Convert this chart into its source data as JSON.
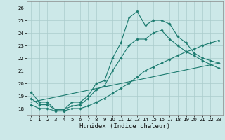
{
  "title": "",
  "xlabel": "Humidex (Indice chaleur)",
  "ylabel": "",
  "bg_color": "#cce8e8",
  "grid_color": "#aacccc",
  "line_color": "#1a7a6e",
  "xlim": [
    -0.5,
    23.5
  ],
  "ylim": [
    17.5,
    26.5
  ],
  "xticks": [
    0,
    1,
    2,
    3,
    4,
    5,
    6,
    7,
    8,
    9,
    10,
    11,
    12,
    13,
    14,
    15,
    16,
    17,
    18,
    19,
    20,
    21,
    22,
    23
  ],
  "yticks": [
    18,
    19,
    20,
    21,
    22,
    23,
    24,
    25,
    26
  ],
  "line1_x": [
    0,
    1,
    2,
    3,
    4,
    5,
    6,
    7,
    8,
    9,
    10,
    11,
    12,
    13,
    14,
    15,
    16,
    17,
    18,
    19,
    20,
    21,
    22,
    23
  ],
  "line1_y": [
    19.3,
    18.5,
    18.5,
    17.9,
    17.9,
    18.5,
    18.5,
    19.0,
    20.0,
    20.2,
    22.0,
    23.2,
    25.2,
    25.7,
    24.6,
    25.0,
    25.0,
    24.7,
    23.7,
    23.2,
    22.4,
    22.0,
    21.8,
    21.6
  ],
  "line2_x": [
    0,
    1,
    2,
    3,
    4,
    5,
    6,
    7,
    8,
    9,
    10,
    11,
    12,
    13,
    14,
    15,
    16,
    17,
    18,
    19,
    20,
    21,
    22,
    23
  ],
  "line2_y": [
    18.8,
    18.3,
    18.3,
    17.9,
    17.9,
    18.2,
    18.3,
    18.8,
    19.5,
    19.8,
    21.0,
    22.0,
    23.0,
    23.5,
    23.5,
    24.0,
    24.2,
    23.5,
    23.0,
    22.5,
    22.2,
    21.8,
    21.5,
    21.2
  ],
  "line3_x": [
    0,
    1,
    2,
    3,
    4,
    5,
    6,
    7,
    8,
    9,
    10,
    11,
    12,
    13,
    14,
    15,
    16,
    17,
    18,
    19,
    20,
    21,
    22,
    23
  ],
  "line3_y": [
    18.3,
    18.0,
    18.0,
    17.8,
    17.8,
    18.0,
    18.0,
    18.2,
    18.5,
    18.8,
    19.2,
    19.6,
    20.0,
    20.5,
    21.0,
    21.3,
    21.6,
    21.9,
    22.2,
    22.5,
    22.7,
    23.0,
    23.2,
    23.4
  ],
  "line4_x": [
    0,
    23
  ],
  "line4_y": [
    18.5,
    21.6
  ]
}
